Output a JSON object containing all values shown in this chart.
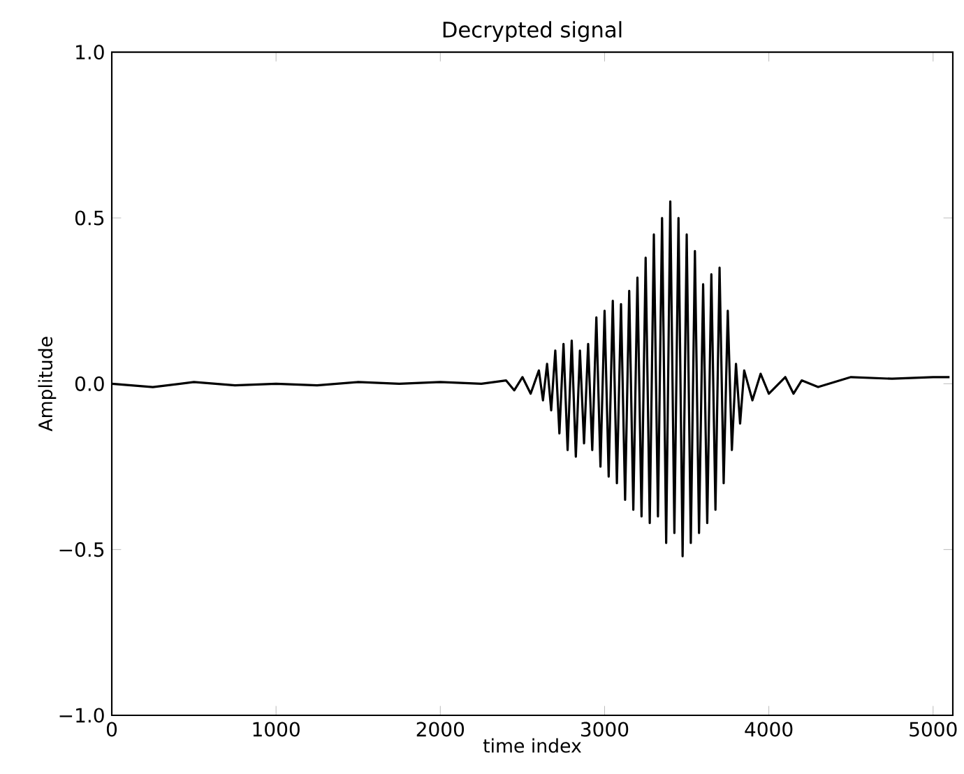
{
  "chart_data": {
    "type": "line",
    "title": "Decrypted signal",
    "xlabel": "time index",
    "ylabel": "Amplitude",
    "xlim": [
      0,
      5120
    ],
    "ylim": [
      -1,
      1
    ],
    "xticks": [
      0,
      1000,
      2000,
      3000,
      4000,
      5000
    ],
    "yticks": [
      {
        "value": -1,
        "label": "−1.0"
      },
      {
        "value": -0.5,
        "label": "−0.5"
      },
      {
        "value": 0,
        "label": "0.0"
      },
      {
        "value": 0.5,
        "label": "0.5"
      },
      {
        "value": 1,
        "label": "1.0"
      }
    ],
    "grid": false,
    "marker": "none",
    "line_style": "solid",
    "series": [
      {
        "color": "#000000",
        "x": [
          0,
          250,
          500,
          750,
          1000,
          1250,
          1500,
          1750,
          2000,
          2250,
          2400,
          2450,
          2500,
          2550,
          2600,
          2625,
          2650,
          2675,
          2700,
          2725,
          2750,
          2775,
          2800,
          2825,
          2850,
          2875,
          2900,
          2925,
          2950,
          2975,
          3000,
          3025,
          3050,
          3075,
          3100,
          3125,
          3150,
          3175,
          3200,
          3225,
          3250,
          3275,
          3300,
          3325,
          3350,
          3375,
          3400,
          3425,
          3450,
          3475,
          3500,
          3525,
          3550,
          3575,
          3600,
          3625,
          3650,
          3675,
          3700,
          3725,
          3750,
          3775,
          3800,
          3825,
          3850,
          3900,
          3950,
          4000,
          4100,
          4150,
          4200,
          4300,
          4500,
          4750,
          5000,
          5100
        ],
        "values": [
          0.0,
          -0.01,
          0.005,
          -0.005,
          0.0,
          -0.005,
          0.005,
          0.0,
          0.005,
          0.0,
          0.01,
          -0.02,
          0.02,
          -0.03,
          0.04,
          -0.05,
          0.06,
          -0.08,
          0.1,
          -0.15,
          0.12,
          -0.2,
          0.13,
          -0.22,
          0.1,
          -0.18,
          0.12,
          -0.2,
          0.2,
          -0.25,
          0.22,
          -0.28,
          0.25,
          -0.3,
          0.24,
          -0.35,
          0.28,
          -0.38,
          0.32,
          -0.4,
          0.38,
          -0.42,
          0.45,
          -0.4,
          0.5,
          -0.48,
          0.55,
          -0.45,
          0.5,
          -0.52,
          0.45,
          -0.48,
          0.4,
          -0.45,
          0.3,
          -0.42,
          0.33,
          -0.38,
          0.35,
          -0.3,
          0.22,
          -0.2,
          0.06,
          -0.12,
          0.04,
          -0.05,
          0.03,
          -0.03,
          0.02,
          -0.03,
          0.01,
          -0.01,
          0.02,
          0.015,
          0.02,
          0.02
        ]
      }
    ]
  }
}
